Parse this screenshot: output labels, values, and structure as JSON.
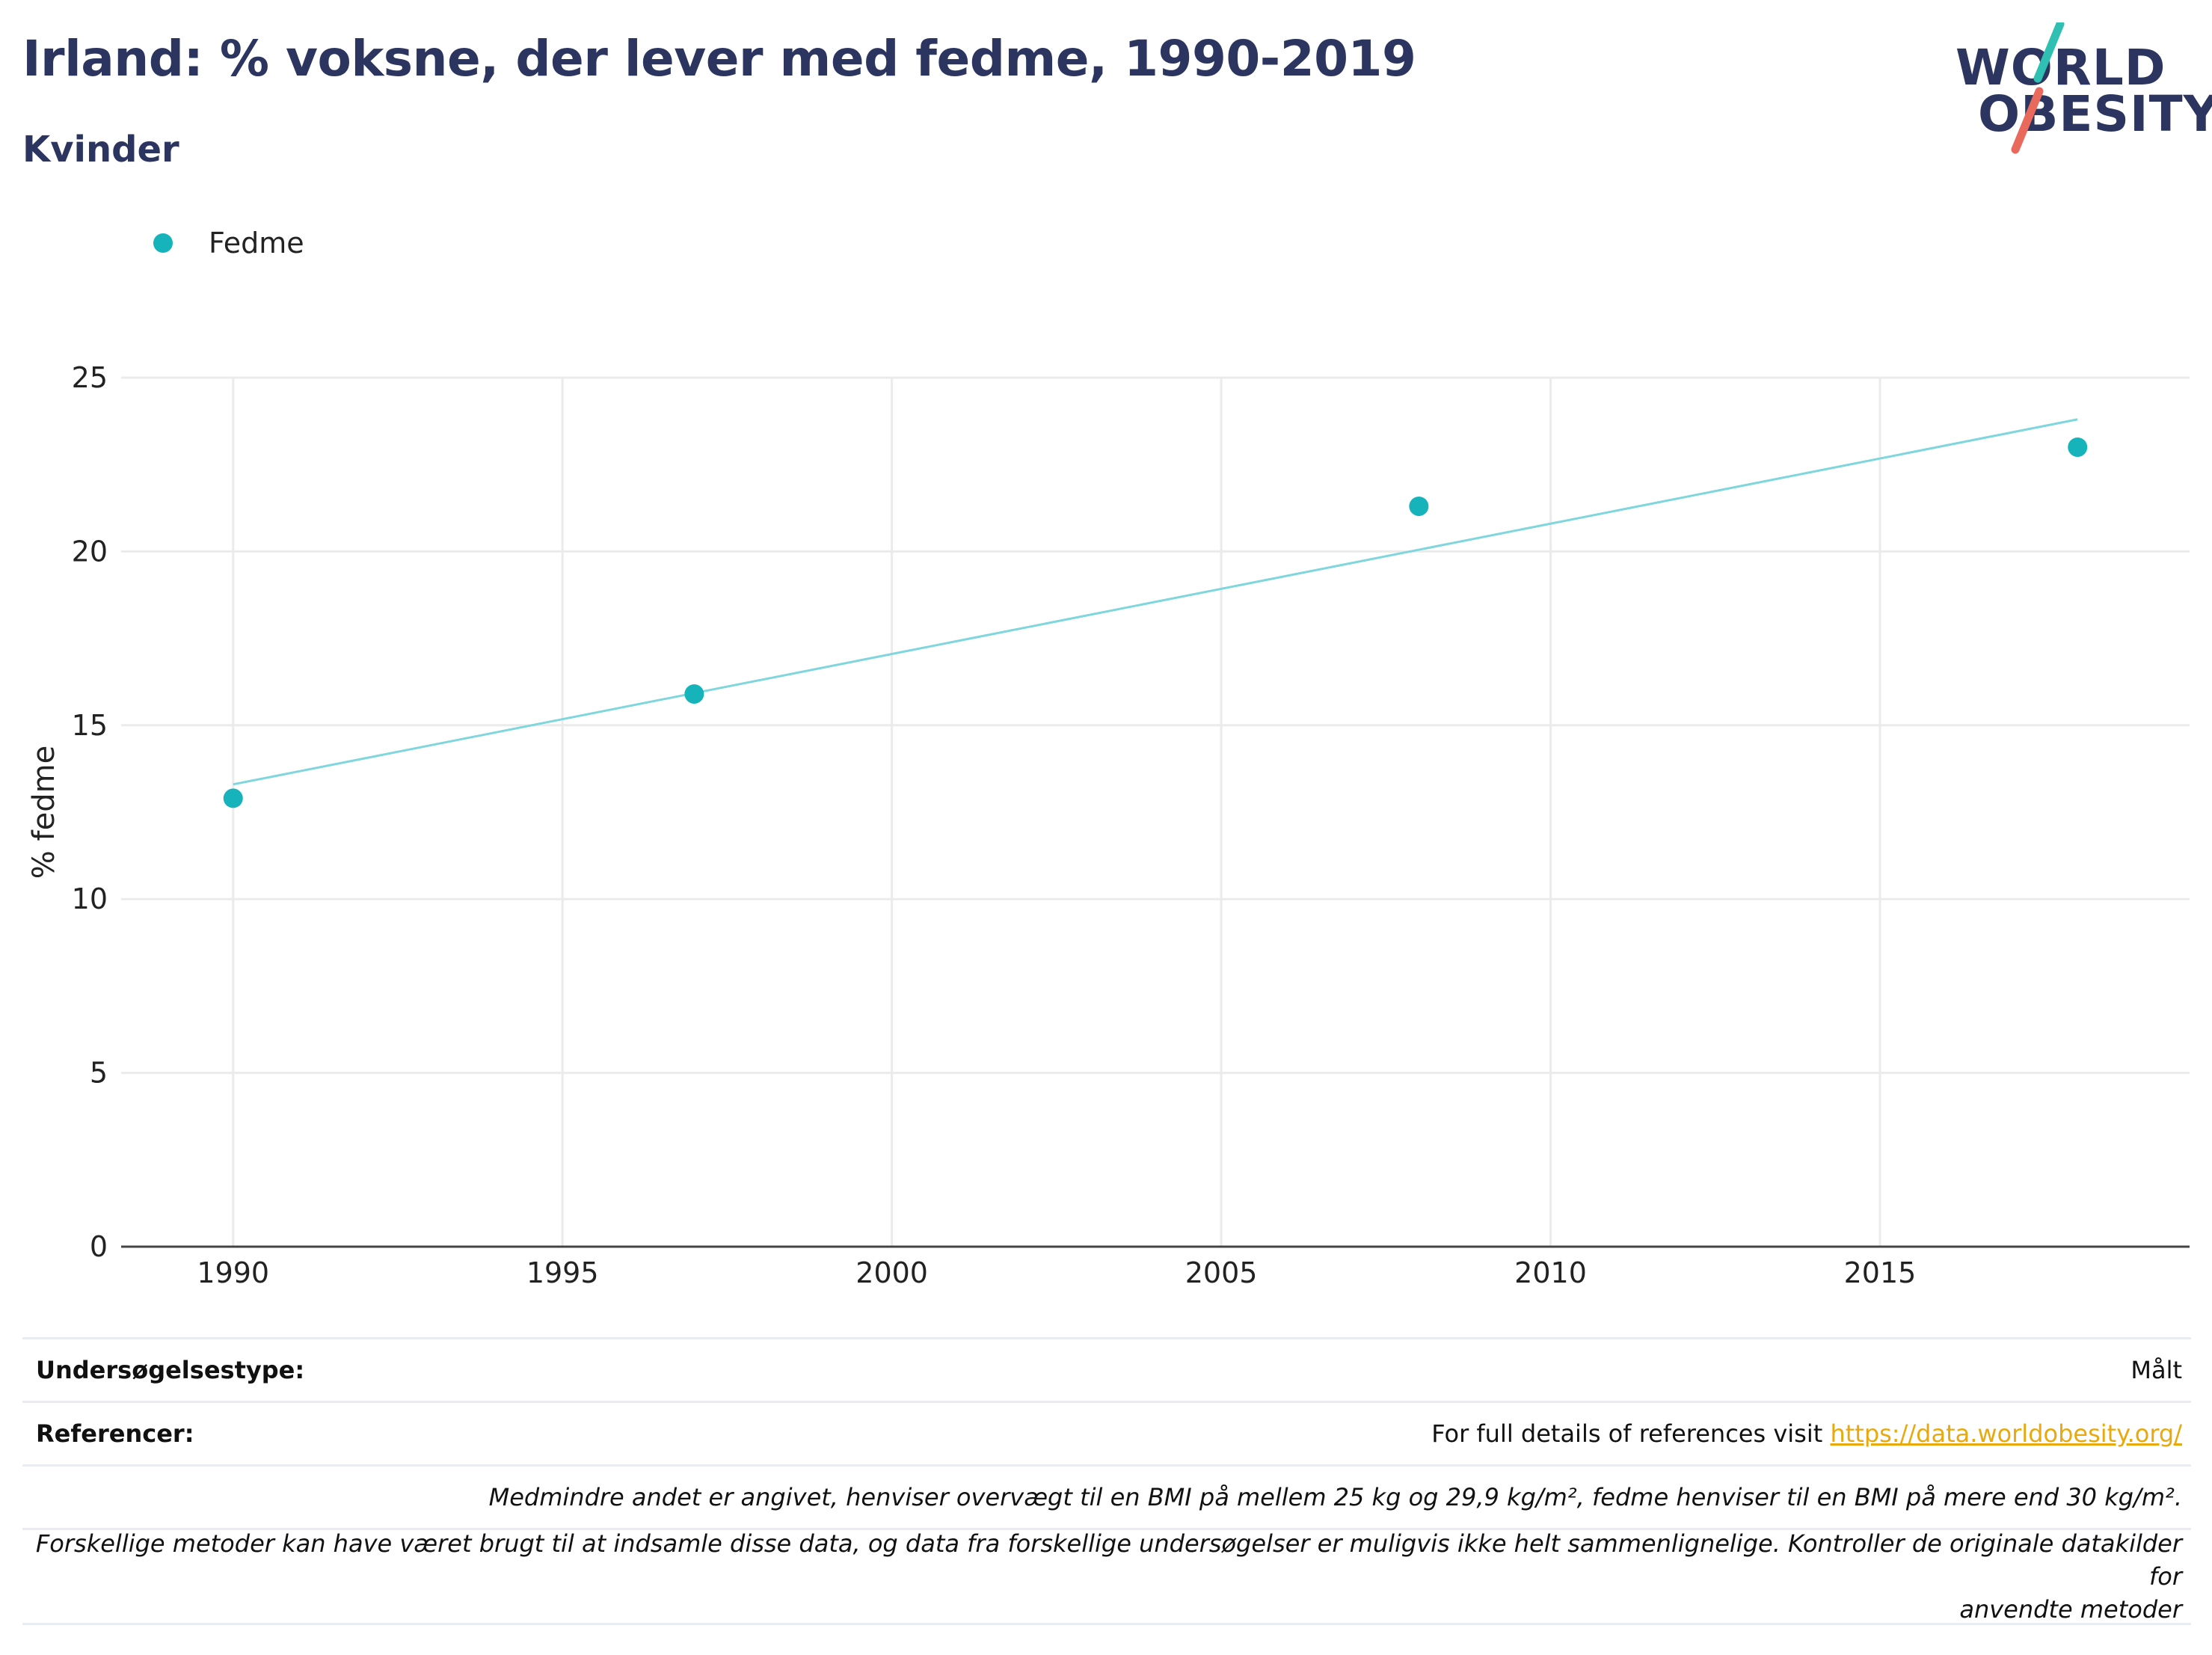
{
  "title": "Irland: % voksne, der lever med fedme, 1990-2019",
  "subtitle": "Kvinder",
  "logo": {
    "line1": "WORLD",
    "line2": "OBESITY",
    "name": "world-obesity-logo"
  },
  "colors": {
    "accent": "#16b3bb",
    "trend": "#7fd6dc",
    "title": "#2b3560",
    "link": "#e8a90e"
  },
  "legend": {
    "label": "Fedme"
  },
  "chart_data": {
    "type": "scatter",
    "title": "Irland: % voksne, der lever med fedme, 1990-2019",
    "subtitle": "Kvinder",
    "xlabel": "",
    "ylabel": "% fedme",
    "xlim": [
      1988.3,
      2019.7
    ],
    "ylim": [
      0,
      25
    ],
    "x_ticks": [
      1990,
      1995,
      2000,
      2005,
      2010,
      2015
    ],
    "y_ticks": [
      0,
      5,
      10,
      15,
      20,
      25
    ],
    "grid": true,
    "legend_position": "top-left",
    "series": [
      {
        "name": "Fedme",
        "x": [
          1990,
          1997,
          2008,
          2018
        ],
        "y": [
          12.9,
          15.9,
          21.3,
          23.0
        ]
      }
    ],
    "trendline": {
      "x": [
        1990,
        2018
      ],
      "y": [
        13.3,
        23.8
      ]
    }
  },
  "footer": {
    "survey_label": "Undersøgelsestype:",
    "survey_value": "Målt",
    "refs_label": "Referencer:",
    "refs_text": "For full details of references visit ",
    "refs_link": "https://data.worldobesity.org/",
    "note1": "Medmindre andet er angivet, henviser overvægt til en BMI på mellem 25 kg og 29,9 kg/m², fedme henviser til en BMI på mere end 30 kg/m².",
    "note2_line1": "Forskellige metoder kan have været brugt til at indsamle disse data, og data fra forskellige undersøgelser er muligvis ikke helt sammenlignelige. Kontroller de originale datakilder for",
    "note2_line2": "anvendte metoder"
  }
}
